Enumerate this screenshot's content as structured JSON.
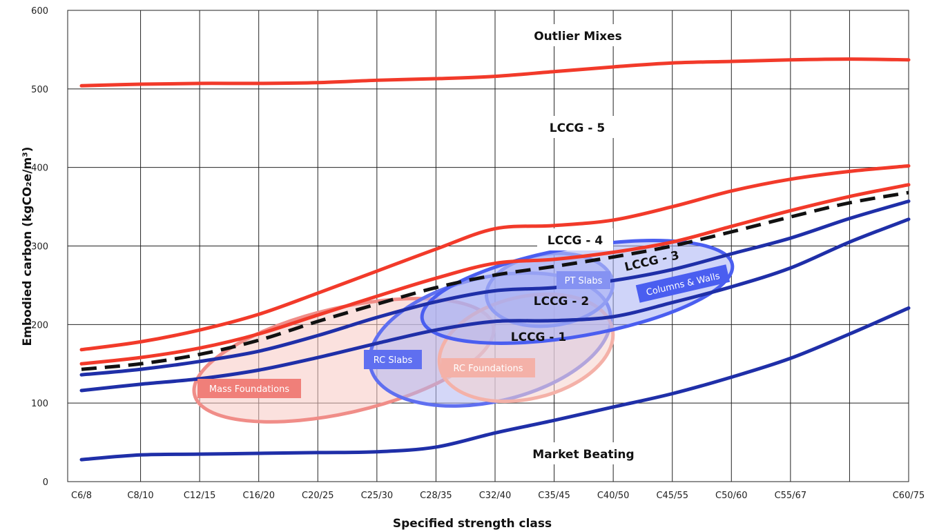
{
  "chart_data": {
    "type": "line",
    "xlabel": "Specified strength class",
    "ylabel": "Embodied carbon (kgCO₂e/m³)",
    "categories": [
      "C6/8",
      "C8/10",
      "C12/15",
      "C16/20",
      "C20/25",
      "C25/30",
      "C28/35",
      "C32/40",
      "C35/45",
      "C40/50",
      "C45/55",
      "C50/60",
      "C55/67",
      "",
      "C60/75"
    ],
    "ylim": [
      0,
      600
    ],
    "yticks": [
      0,
      100,
      200,
      300,
      400,
      500,
      600
    ],
    "grid": true,
    "series": [
      {
        "color": "#f23a2a",
        "style": "solid",
        "values": [
          504,
          506,
          507,
          507,
          508,
          511,
          513,
          516,
          522,
          528,
          533,
          535,
          537,
          538,
          537
        ]
      },
      {
        "color": "#f23a2a",
        "style": "solid",
        "values": [
          168,
          178,
          193,
          213,
          240,
          268,
          296,
          322,
          326,
          333,
          350,
          370,
          385,
          395,
          402
        ]
      },
      {
        "color": "#f23a2a",
        "style": "solid",
        "values": [
          150,
          158,
          170,
          188,
          212,
          236,
          259,
          278,
          283,
          292,
          305,
          325,
          345,
          363,
          378
        ]
      },
      {
        "color": "#111111",
        "style": "dashed",
        "values": [
          143,
          150,
          162,
          180,
          204,
          226,
          247,
          263,
          274,
          286,
          300,
          318,
          337,
          355,
          368
        ]
      },
      {
        "color": "#1f2fa8",
        "style": "solid",
        "values": [
          136,
          143,
          153,
          166,
          186,
          209,
          229,
          243,
          247,
          256,
          270,
          290,
          310,
          335,
          357
        ]
      },
      {
        "color": "#1f2fa8",
        "style": "solid",
        "values": [
          116,
          124,
          131,
          142,
          158,
          176,
          193,
          204,
          205,
          210,
          228,
          248,
          272,
          305,
          334
        ]
      },
      {
        "color": "#1f2fa8",
        "style": "solid",
        "values": [
          28,
          34,
          35,
          36,
          37,
          38,
          44,
          62,
          78,
          95,
          112,
          133,
          157,
          188,
          221
        ]
      }
    ],
    "bands": [
      {
        "label": "Outlier Mixes",
        "y": 552
      },
      {
        "label": "LCCG - 5",
        "y": 444
      },
      {
        "label": "LCCG - 4",
        "y": 303
      },
      {
        "label": "LCCG - 3",
        "y": 273
      },
      {
        "label": "LCCG - 2",
        "y": 226
      },
      {
        "label": "LCCG - 1",
        "y": 178
      },
      {
        "label": "Market Beating",
        "y": 30
      }
    ],
    "zones": [
      {
        "label": "Mass Foundations",
        "fill": "#f7c8c2",
        "stroke": "#f08d88",
        "badge": "#f07f79"
      },
      {
        "label": "RC Slabs",
        "fill": "#b0b7f2",
        "stroke": "#5f6ff0",
        "badge": "#5f6ff0"
      },
      {
        "label": "RC Foundations",
        "fill": "#f6d1cc",
        "stroke": "#f4b1a8",
        "badge": "#f4b1a8"
      },
      {
        "label": "PT Slabs",
        "fill": "#9ea8f3",
        "stroke": "#7785f2",
        "badge": "#8592f2"
      },
      {
        "label": "Columns & Walls",
        "fill": "#a7b0f4",
        "stroke": "#4a5ef0",
        "badge": "#4a5ef0"
      }
    ]
  }
}
